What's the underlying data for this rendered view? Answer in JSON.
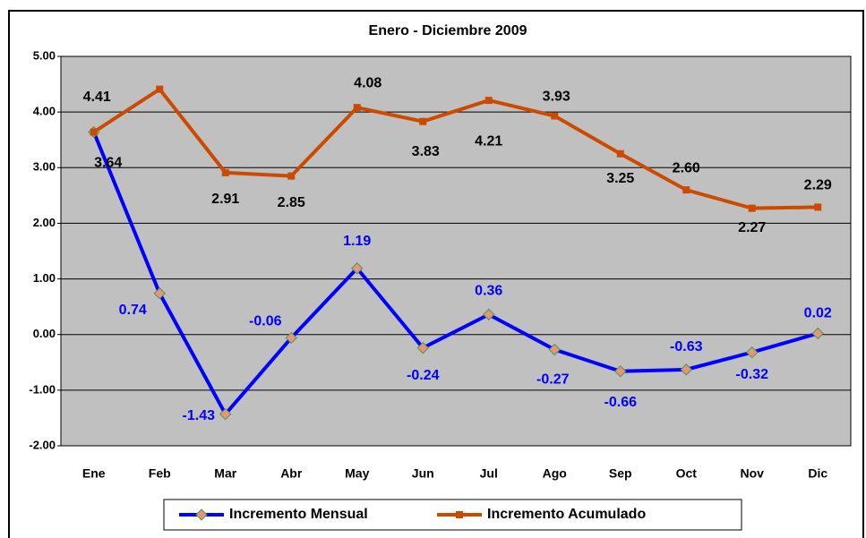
{
  "chart_data": {
    "type": "line",
    "title": "Enero - Diciembre 2009",
    "categories": [
      "Ene",
      "Feb",
      "Mar",
      "Abr",
      "May",
      "Jun",
      "Jul",
      "Ago",
      "Sep",
      "Oct",
      "Nov",
      "Dic"
    ],
    "series": [
      {
        "name": "Incremento Mensual",
        "color": "#0000ff",
        "values": [
          3.64,
          0.74,
          -1.43,
          -0.06,
          1.19,
          -0.24,
          0.36,
          -0.27,
          -0.66,
          -0.63,
          -0.32,
          0.02
        ],
        "value_labels": [
          null,
          "0.74",
          "-1.43",
          "-0.06",
          "1.19",
          "-0.24",
          "0.36",
          "-0.27",
          "-0.66",
          "-0.63",
          "-0.32",
          "0.02"
        ]
      },
      {
        "name": "Incremento Acumulado",
        "color": "#cc4a00",
        "values": [
          3.64,
          4.41,
          2.91,
          2.85,
          4.08,
          3.83,
          4.21,
          3.93,
          3.25,
          2.6,
          2.27,
          2.29
        ],
        "value_labels": [
          "3.64",
          "4.41",
          "2.91",
          "2.85",
          "4.08",
          "3.83",
          "4.21",
          "3.93",
          "3.25",
          "2.60",
          "2.27",
          "2.29"
        ]
      }
    ],
    "ylim": [
      -2,
      5
    ],
    "yticks": [
      {
        "value": -2,
        "label": "-2.00"
      },
      {
        "value": -1,
        "label": "-1.00"
      },
      {
        "value": 0,
        "label": "0.00"
      },
      {
        "value": 1,
        "label": "1.00"
      },
      {
        "value": 2,
        "label": "2.00"
      },
      {
        "value": 3,
        "label": "3.00"
      },
      {
        "value": 4,
        "label": "4.00"
      },
      {
        "value": 5,
        "label": "5.00"
      }
    ],
    "grid": true,
    "legend": "bottom"
  }
}
